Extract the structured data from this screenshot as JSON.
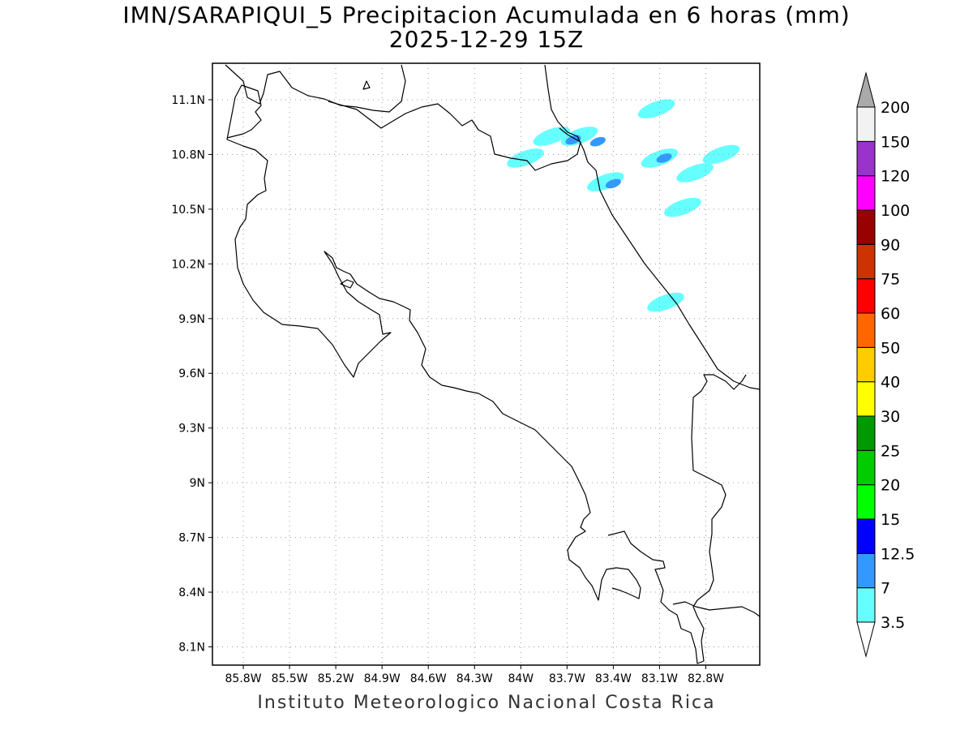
{
  "title": {
    "line1": "IMN/SARAPIQUI_5 Precipitacion Acumulada en 6 horas (mm)",
    "line2": "2025-12-29 15Z"
  },
  "footer": "Instituto Meteorologico Nacional Costa Rica",
  "map": {
    "lon_range": [
      -86.0,
      -82.45
    ],
    "lat_range": [
      8.0,
      11.3
    ],
    "lon_ticks": [
      {
        "value": -85.8,
        "label": "85.8W"
      },
      {
        "value": -85.5,
        "label": "85.5W"
      },
      {
        "value": -85.2,
        "label": "85.2W"
      },
      {
        "value": -84.9,
        "label": "84.9W"
      },
      {
        "value": -84.6,
        "label": "84.6W"
      },
      {
        "value": -84.3,
        "label": "84.3W"
      },
      {
        "value": -84.0,
        "label": "84W"
      },
      {
        "value": -83.7,
        "label": "83.7W"
      },
      {
        "value": -83.4,
        "label": "83.4W"
      },
      {
        "value": -83.1,
        "label": "83.1W"
      },
      {
        "value": -82.8,
        "label": "82.8W"
      }
    ],
    "lat_ticks": [
      {
        "value": 11.1,
        "label": "11.1N"
      },
      {
        "value": 10.8,
        "label": "10.8N"
      },
      {
        "value": 10.5,
        "label": "10.5N"
      },
      {
        "value": 10.2,
        "label": "10.2N"
      },
      {
        "value": 9.9,
        "label": "9.9N"
      },
      {
        "value": 9.6,
        "label": "9.6N"
      },
      {
        "value": 9.3,
        "label": "9.3N"
      },
      {
        "value": 9.0,
        "label": "9N"
      },
      {
        "value": 8.7,
        "label": "8.7N"
      },
      {
        "value": 8.4,
        "label": "8.4N"
      },
      {
        "value": 8.1,
        "label": "8.1N"
      }
    ],
    "grid": "dotted",
    "coastline_color": "#000000"
  },
  "colorbar": {
    "levels": [
      "3.5",
      "7",
      "12.5",
      "15",
      "20",
      "25",
      "30",
      "40",
      "50",
      "60",
      "75",
      "90",
      "100",
      "120",
      "150",
      "200"
    ],
    "colors": [
      "#66ffff",
      "#3399ff",
      "#0000ff",
      "#00ff00",
      "#00cc00",
      "#009900",
      "#ffff00",
      "#ffcc00",
      "#ff6600",
      "#ff0000",
      "#cc3300",
      "#990000",
      "#ff00ff",
      "#9933cc",
      "#f2f2f2"
    ],
    "over_color": "#aaaaaa",
    "under_color": "#ffffff"
  },
  "precip_cells": [
    {
      "lon": -83.8,
      "lat": 10.9,
      "value": 3.5
    },
    {
      "lon": -83.62,
      "lat": 10.9,
      "value": 3.5
    },
    {
      "lon": -83.97,
      "lat": 10.78,
      "value": 3.5
    },
    {
      "lon": -83.12,
      "lat": 11.05,
      "value": 3.5
    },
    {
      "lon": -83.1,
      "lat": 10.78,
      "value": 3.5
    },
    {
      "lon": -83.45,
      "lat": 10.65,
      "value": 3.5
    },
    {
      "lon": -82.95,
      "lat": 10.51,
      "value": 3.5
    },
    {
      "lon": -82.7,
      "lat": 10.8,
      "value": 3.5
    },
    {
      "lon": -82.87,
      "lat": 10.7,
      "value": 3.5
    },
    {
      "lon": -83.06,
      "lat": 9.99,
      "value": 3.5
    },
    {
      "lon": -83.66,
      "lat": 10.88,
      "value": 7
    },
    {
      "lon": -83.5,
      "lat": 10.87,
      "value": 7
    },
    {
      "lon": -83.07,
      "lat": 10.78,
      "value": 7
    },
    {
      "lon": -83.4,
      "lat": 10.64,
      "value": 7
    }
  ]
}
